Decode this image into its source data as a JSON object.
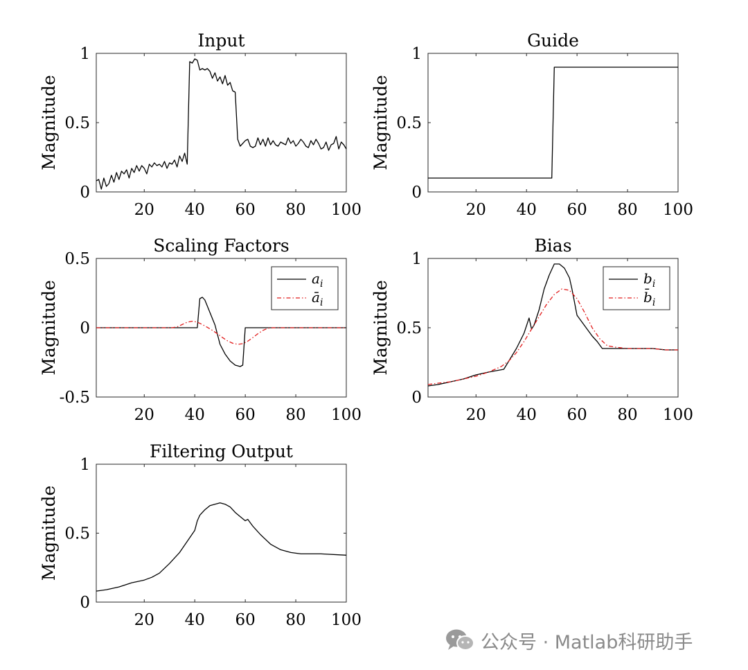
{
  "colors": {
    "primary": "#000000",
    "secondary": "#e11b1b",
    "watermark": "#8a8a8a"
  },
  "watermark": {
    "text": "公众号 · Matlab科研助手",
    "icon": "wechat-icon"
  },
  "chart_data": [
    {
      "type": "line",
      "title": "Input",
      "ylabel": "Magnitude",
      "xlabel": "",
      "xlim": [
        1,
        100
      ],
      "ylim": [
        0,
        1
      ],
      "xticks": [
        20,
        40,
        60,
        80,
        100
      ],
      "yticks": [
        0,
        0.5,
        1
      ],
      "ytick_labels": [
        "0",
        "0.5",
        "1"
      ],
      "legend": null,
      "series": [
        {
          "name": "",
          "style": "solid",
          "color": "#000000",
          "x": [
            1,
            2,
            3,
            4,
            5,
            6,
            7,
            8,
            9,
            10,
            11,
            12,
            13,
            14,
            15,
            16,
            17,
            18,
            19,
            20,
            21,
            22,
            23,
            24,
            25,
            26,
            27,
            28,
            29,
            30,
            31,
            32,
            33,
            34,
            35,
            36,
            37,
            38,
            39,
            40,
            41,
            42,
            43,
            44,
            45,
            46,
            47,
            48,
            49,
            50,
            51,
            52,
            53,
            54,
            55,
            56,
            57,
            58,
            59,
            60,
            61,
            62,
            63,
            64,
            65,
            66,
            67,
            68,
            69,
            70,
            71,
            72,
            73,
            74,
            75,
            76,
            77,
            78,
            79,
            80,
            81,
            82,
            83,
            84,
            85,
            86,
            87,
            88,
            89,
            90,
            91,
            92,
            93,
            94,
            95,
            96,
            97,
            98,
            99,
            100
          ],
          "y": [
            0.08,
            0.09,
            0.02,
            0.1,
            0.04,
            0.06,
            0.12,
            0.07,
            0.14,
            0.09,
            0.15,
            0.13,
            0.16,
            0.1,
            0.17,
            0.14,
            0.19,
            0.15,
            0.19,
            0.17,
            0.13,
            0.2,
            0.18,
            0.21,
            0.19,
            0.2,
            0.18,
            0.22,
            0.17,
            0.21,
            0.2,
            0.23,
            0.18,
            0.26,
            0.22,
            0.28,
            0.2,
            0.94,
            0.93,
            0.96,
            0.95,
            0.88,
            0.89,
            0.88,
            0.89,
            0.87,
            0.82,
            0.86,
            0.8,
            0.83,
            0.78,
            0.84,
            0.77,
            0.79,
            0.73,
            0.72,
            0.38,
            0.33,
            0.35,
            0.37,
            0.38,
            0.33,
            0.32,
            0.33,
            0.39,
            0.34,
            0.38,
            0.33,
            0.39,
            0.34,
            0.37,
            0.34,
            0.33,
            0.36,
            0.35,
            0.34,
            0.39,
            0.35,
            0.37,
            0.33,
            0.35,
            0.38,
            0.36,
            0.33,
            0.32,
            0.37,
            0.34,
            0.38,
            0.35,
            0.31,
            0.32,
            0.36,
            0.3,
            0.34,
            0.35,
            0.4,
            0.31,
            0.36,
            0.34,
            0.31
          ]
        }
      ]
    },
    {
      "type": "line",
      "title": "Guide",
      "ylabel": "Magnitude",
      "xlabel": "",
      "xlim": [
        1,
        100
      ],
      "ylim": [
        0,
        1
      ],
      "xticks": [
        20,
        40,
        60,
        80,
        100
      ],
      "yticks": [
        0,
        0.5,
        1
      ],
      "ytick_labels": [
        "0",
        "0.5",
        "1"
      ],
      "legend": null,
      "series": [
        {
          "name": "",
          "style": "solid",
          "color": "#000000",
          "x": [
            1,
            50,
            51,
            100
          ],
          "y": [
            0.1,
            0.1,
            0.9,
            0.9
          ]
        }
      ]
    },
    {
      "type": "line",
      "title": "Scaling Factors",
      "ylabel": "Magnitude",
      "xlabel": "",
      "xlim": [
        1,
        100
      ],
      "ylim": [
        -0.5,
        0.5
      ],
      "xticks": [
        20,
        40,
        60,
        80,
        100
      ],
      "yticks": [
        -0.5,
        0,
        0.5
      ],
      "ytick_labels": [
        "-0.5",
        "0",
        "0.5"
      ],
      "legend": "top-right",
      "series": [
        {
          "name": "a_i",
          "style": "solid",
          "color": "#000000",
          "x": [
            1,
            32,
            41,
            42,
            43,
            44,
            46,
            48,
            50,
            52,
            54,
            56,
            58,
            59,
            60,
            69,
            100
          ],
          "y": [
            0,
            0,
            0,
            0.21,
            0.22,
            0.2,
            0.11,
            0.02,
            -0.12,
            -0.19,
            -0.24,
            -0.27,
            -0.28,
            -0.27,
            0,
            0,
            0
          ]
        },
        {
          "name": "ā_i",
          "style": "dashdot",
          "color": "#e11b1b",
          "x": [
            1,
            31,
            33,
            35,
            37,
            39,
            41,
            43,
            45,
            47,
            49,
            51,
            53,
            55,
            57,
            59,
            61,
            63,
            65,
            67,
            69,
            71,
            100
          ],
          "y": [
            0,
            0,
            0.006,
            0.023,
            0.04,
            0.047,
            0.04,
            0.023,
            0.003,
            -0.019,
            -0.044,
            -0.071,
            -0.095,
            -0.112,
            -0.12,
            -0.115,
            -0.097,
            -0.071,
            -0.043,
            -0.019,
            -0.003,
            0,
            0
          ]
        }
      ]
    },
    {
      "type": "line",
      "title": "Bias",
      "ylabel": "Magnitude",
      "xlabel": "",
      "xlim": [
        1,
        100
      ],
      "ylim": [
        0,
        1
      ],
      "xticks": [
        20,
        40,
        60,
        80,
        100
      ],
      "yticks": [
        0,
        0.5,
        1
      ],
      "ytick_labels": [
        "0",
        "0.5",
        "1"
      ],
      "legend": "top-right",
      "series": [
        {
          "name": "b_i",
          "style": "solid",
          "color": "#000000",
          "x": [
            1,
            5,
            10,
            15,
            20,
            25,
            31,
            33,
            36,
            39,
            41,
            42,
            43,
            45,
            47,
            49,
            51,
            53,
            55,
            57,
            58,
            60,
            62,
            64,
            66,
            68,
            70,
            75,
            80,
            85,
            90,
            95,
            100
          ],
          "y": [
            0.08,
            0.09,
            0.11,
            0.13,
            0.16,
            0.18,
            0.2,
            0.26,
            0.35,
            0.46,
            0.57,
            0.49,
            0.52,
            0.63,
            0.78,
            0.88,
            0.96,
            0.96,
            0.93,
            0.86,
            0.78,
            0.59,
            0.54,
            0.49,
            0.44,
            0.4,
            0.35,
            0.35,
            0.35,
            0.35,
            0.35,
            0.34,
            0.34
          ]
        },
        {
          "name": "b̄_i",
          "style": "dashdot",
          "color": "#e11b1b",
          "x": [
            1,
            5,
            10,
            15,
            20,
            25,
            30,
            33,
            36,
            39,
            42,
            45,
            48,
            51,
            54,
            57,
            60,
            63,
            66,
            69,
            72,
            75,
            80,
            85,
            90,
            95,
            100
          ],
          "y": [
            0.09,
            0.1,
            0.11,
            0.13,
            0.15,
            0.18,
            0.22,
            0.26,
            0.32,
            0.4,
            0.49,
            0.58,
            0.67,
            0.74,
            0.78,
            0.77,
            0.71,
            0.61,
            0.5,
            0.42,
            0.37,
            0.36,
            0.35,
            0.35,
            0.35,
            0.34,
            0.34
          ]
        }
      ]
    },
    {
      "type": "line",
      "title": "Filtering Output",
      "ylabel": "Magnitude",
      "xlabel": "",
      "xlim": [
        1,
        100
      ],
      "ylim": [
        0,
        1
      ],
      "xticks": [
        20,
        40,
        60,
        80,
        100
      ],
      "yticks": [
        0,
        0.5,
        1
      ],
      "ytick_labels": [
        "0",
        "0.5",
        "1"
      ],
      "legend": null,
      "series": [
        {
          "name": "",
          "style": "solid",
          "color": "#000000",
          "x": [
            1,
            5,
            10,
            15,
            20,
            23,
            26,
            30,
            34,
            37,
            40,
            41,
            42,
            44,
            46,
            48,
            50,
            52,
            54,
            56,
            58,
            60,
            61,
            63,
            66,
            70,
            74,
            78,
            82,
            90,
            100
          ],
          "y": [
            0.08,
            0.09,
            0.11,
            0.14,
            0.16,
            0.18,
            0.21,
            0.28,
            0.36,
            0.44,
            0.52,
            0.59,
            0.63,
            0.67,
            0.7,
            0.71,
            0.72,
            0.71,
            0.69,
            0.65,
            0.62,
            0.59,
            0.6,
            0.55,
            0.49,
            0.42,
            0.38,
            0.36,
            0.35,
            0.35,
            0.34
          ]
        }
      ]
    }
  ]
}
